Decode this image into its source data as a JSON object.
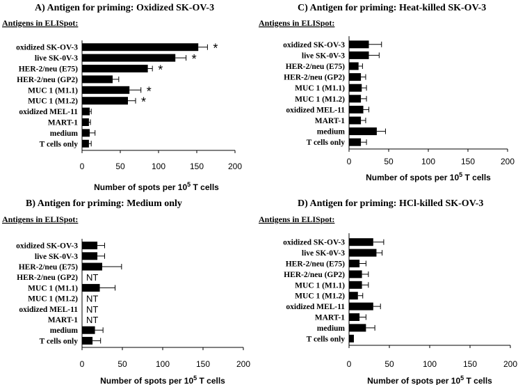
{
  "chart_data": [
    {
      "type": "bar",
      "orientation": "horizontal",
      "title": "A) Antigen for priming: Oxidized SK-OV-3",
      "subtitle": "Antigens in ELISpot:",
      "xlabel": "Number of spots per 10",
      "xlabel_superscript": "5",
      "xlabel_suffix": " T cells",
      "xlim": [
        0,
        200
      ],
      "xticks": [
        0,
        50,
        100,
        150,
        200
      ],
      "categories": [
        "oxidized SK-OV-3",
        "live SK-0V-3",
        "HER-2/neu (E75)",
        "HER-2/neu (GP2)",
        "MUC 1 (M1.1)",
        "MUC 1 (M1.2)",
        "oxidized MEL-11",
        "MART-1",
        "medium",
        "T cells only"
      ],
      "values": [
        152,
        122,
        86,
        40,
        62,
        60,
        10,
        9,
        10,
        9
      ],
      "errors": [
        12,
        14,
        6,
        8,
        15,
        10,
        2,
        2,
        7,
        3
      ],
      "annotations": [
        "*",
        "*",
        "*",
        "",
        "*",
        "*",
        "",
        "",
        "",
        ""
      ]
    },
    {
      "type": "bar",
      "orientation": "horizontal",
      "title": "B) Antigen for priming: Medium only",
      "subtitle": "Antigens in ELISpot:",
      "xlabel": "Number of spots per 10",
      "xlabel_superscript": "5",
      "xlabel_suffix": " T cells",
      "xlim": [
        0,
        200
      ],
      "xticks": [
        0,
        50,
        100,
        150,
        200
      ],
      "categories": [
        "oxidized SK-OV-3",
        "live SK-0V-3",
        "HER-2/neu (E75)",
        "HER-2/neu (GP2)",
        "MUC 1 (M1.1)",
        "MUC 1 (M1.2)",
        "oxidized MEL-11",
        "MART-1",
        "medium",
        "T cells only"
      ],
      "values": [
        19,
        19,
        25,
        null,
        22,
        null,
        null,
        null,
        16,
        13
      ],
      "errors": [
        9,
        9,
        24,
        null,
        19,
        null,
        null,
        null,
        10,
        10
      ],
      "annotations": [
        "",
        "",
        "",
        "NT",
        "",
        "NT",
        "NT",
        "NT",
        "",
        ""
      ]
    },
    {
      "type": "bar",
      "orientation": "horizontal",
      "title": "C) Antigen for priming: Heat-killed SK-OV-3",
      "subtitle": "Antigens in ELISpot:",
      "xlabel": "Number of spots per 10",
      "xlabel_superscript": "5",
      "xlabel_suffix": " T cells",
      "xlim": [
        0,
        200
      ],
      "xticks": [
        0,
        50,
        100,
        150,
        200
      ],
      "categories": [
        "oxidized SK-OV-3",
        "live SK-0V-3",
        "HER-2/neu (E75)",
        "HER-2/neu (GP2)",
        "MUC 1 (M1.1)",
        "MUC 1 (M1.2)",
        "oxidized MEL-11",
        "MART-1",
        "medium",
        "T cells only"
      ],
      "values": [
        25,
        25,
        12,
        15,
        16,
        15,
        18,
        15,
        35,
        15
      ],
      "errors": [
        16,
        13,
        5,
        6,
        6,
        7,
        7,
        6,
        11,
        7
      ],
      "annotations": [
        "",
        "",
        "",
        "",
        "",
        "",
        "",
        "",
        "",
        ""
      ]
    },
    {
      "type": "bar",
      "orientation": "horizontal",
      "title": "D) Antigen for priming: HCl-killed SK-OV-3",
      "subtitle": "Antigens in ELISpot:",
      "xlabel": "Number of spots per 10",
      "xlabel_superscript": "5",
      "xlabel_suffix": " T cells",
      "xlim": [
        0,
        200
      ],
      "xticks": [
        0,
        50,
        100,
        150,
        200
      ],
      "categories": [
        "oxidized SK-OV-3",
        "live SK-0V-3",
        "HER-2/neu (E75)",
        "HER-2/neu (GP2)",
        "MUC 1 (M1.1)",
        "MUC 1 (M1.2)",
        "oxidized MEL-11",
        "MART-1",
        "medium",
        "T cells only"
      ],
      "values": [
        30,
        34,
        13,
        16,
        16,
        11,
        30,
        13,
        21,
        6
      ],
      "errors": [
        13,
        7,
        8,
        8,
        8,
        6,
        9,
        8,
        11,
        0
      ],
      "annotations": [
        "",
        "",
        "",
        "",
        "",
        "",
        "",
        "",
        "",
        ""
      ]
    }
  ],
  "colors": {
    "bar": "#000000",
    "axis": "#000000",
    "background": "#ffffff"
  }
}
